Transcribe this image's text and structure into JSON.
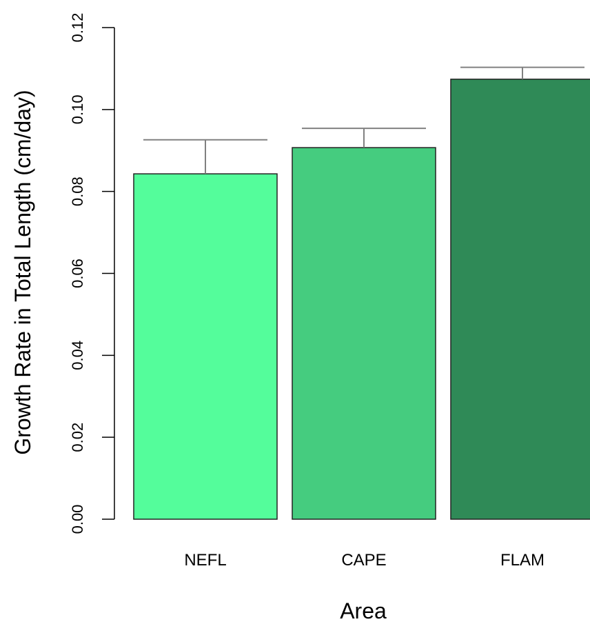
{
  "chart_data": {
    "type": "bar",
    "title": "",
    "xlabel": "Area",
    "ylabel": "Growth Rate in Total Length (cm/day)",
    "categories": [
      "NEFL",
      "CAPE",
      "FLAM"
    ],
    "values": [
      0.0843,
      0.0907,
      0.1074
    ],
    "error_upper": [
      0.0926,
      0.0954,
      0.1103
    ],
    "ylim": [
      0,
      0.12
    ],
    "yticks": [
      "0.00",
      "0.02",
      "0.04",
      "0.06",
      "0.08",
      "0.10",
      "0.12"
    ],
    "colors": [
      "#54fd9b",
      "#45cc7f",
      "#2f8a57"
    ],
    "error_bar_color": "#808080",
    "grid": false,
    "legend": "none"
  }
}
